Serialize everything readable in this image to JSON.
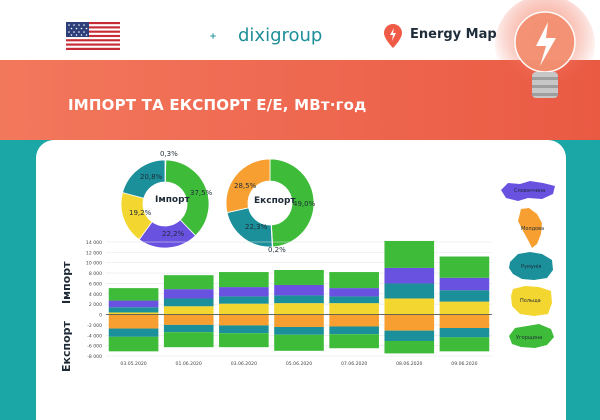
{
  "header": {
    "brand": "dixigroup",
    "energy_map": "Energy Map",
    "flag_icon": "us-flag-icon"
  },
  "banner": {
    "title": "ІМПОРТ ТА ЕКСПОРТ Е/Е, МВт·год"
  },
  "donuts": [
    {
      "center_label": "Імпорт",
      "slices": [
        {
          "label": "0,3%",
          "value": 0.3,
          "color": "#eaeaea"
        },
        {
          "label": "37,5%",
          "value": 37.5,
          "color": "#3fbb3a"
        },
        {
          "label": "22,2%",
          "value": 22.2,
          "color": "#6a52e0"
        },
        {
          "label": "19,2%",
          "value": 19.2,
          "color": "#f4d631"
        },
        {
          "label": "20,8%",
          "value": 20.8,
          "color": "#1b8f9a"
        }
      ]
    },
    {
      "center_label": "Експорт",
      "slices": [
        {
          "label": "49,0%",
          "value": 49.0,
          "color": "#3fbb3a"
        },
        {
          "label": "0,2%",
          "value": 0.2,
          "color": "#eaeaea"
        },
        {
          "label": "22,3%",
          "value": 22.3,
          "color": "#1b8f9a"
        },
        {
          "label": "28,5%",
          "value": 28.5,
          "color": "#f7a031"
        }
      ]
    }
  ],
  "chart_data": {
    "type": "bar",
    "stacked": true,
    "categories": [
      "03.05.2020",
      "01.06.2020",
      "03.06.2020",
      "05.06.2020",
      "07.06.2020",
      "08.06.2020",
      "09.06.2020"
    ],
    "ylim": [
      -8000,
      14000
    ],
    "yticks": [
      -8000,
      -6000,
      -4000,
      -2000,
      0,
      2000,
      4000,
      6000,
      8000,
      10000,
      12000,
      14000
    ],
    "ytick_labels": [
      "-8 000",
      "-6 000",
      "-4 000",
      "-2 000",
      "0",
      "2 000",
      "4 000",
      "6 000",
      "8 000",
      "10 000",
      "12 000",
      "14 000"
    ],
    "import_label": "Імпорт",
    "export_label": "Експорт",
    "series": [
      {
        "values": [
          400,
          1600,
          2100,
          2200,
          2200,
          3100,
          2500
        ],
        "color": "#f4d631"
      },
      {
        "values": [
          1000,
          1500,
          1400,
          1500,
          1300,
          2900,
          2200
        ],
        "color": "#1b8f9a"
      },
      {
        "values": [
          1300,
          1800,
          1800,
          2000,
          1600,
          3000,
          2400
        ],
        "color": "#6a52e0"
      },
      {
        "values": [
          2400,
          2700,
          2900,
          2900,
          3100,
          5200,
          4100
        ],
        "color": "#3fbb3a"
      },
      {
        "values": [
          -2700,
          -2000,
          -2100,
          -2400,
          -2300,
          -3100,
          -2600
        ],
        "color": "#f7a031"
      },
      {
        "values": [
          -1600,
          -1400,
          -1500,
          -1500,
          -1500,
          -2000,
          -1800
        ],
        "color": "#1b8f9a"
      },
      {
        "values": [
          -2800,
          -2900,
          -2700,
          -3100,
          -2700,
          -2400,
          -2700
        ],
        "color": "#3fbb3a"
      }
    ]
  },
  "maps": [
    {
      "label": "Словаччина",
      "color": "#6a52e0"
    },
    {
      "label": "Молдова",
      "color": "#f7a031"
    },
    {
      "label": "Румунія",
      "color": "#1b8f9a"
    },
    {
      "label": "Польща",
      "color": "#f4d631"
    },
    {
      "label": "Угорщина",
      "color": "#3fbb3a"
    }
  ]
}
